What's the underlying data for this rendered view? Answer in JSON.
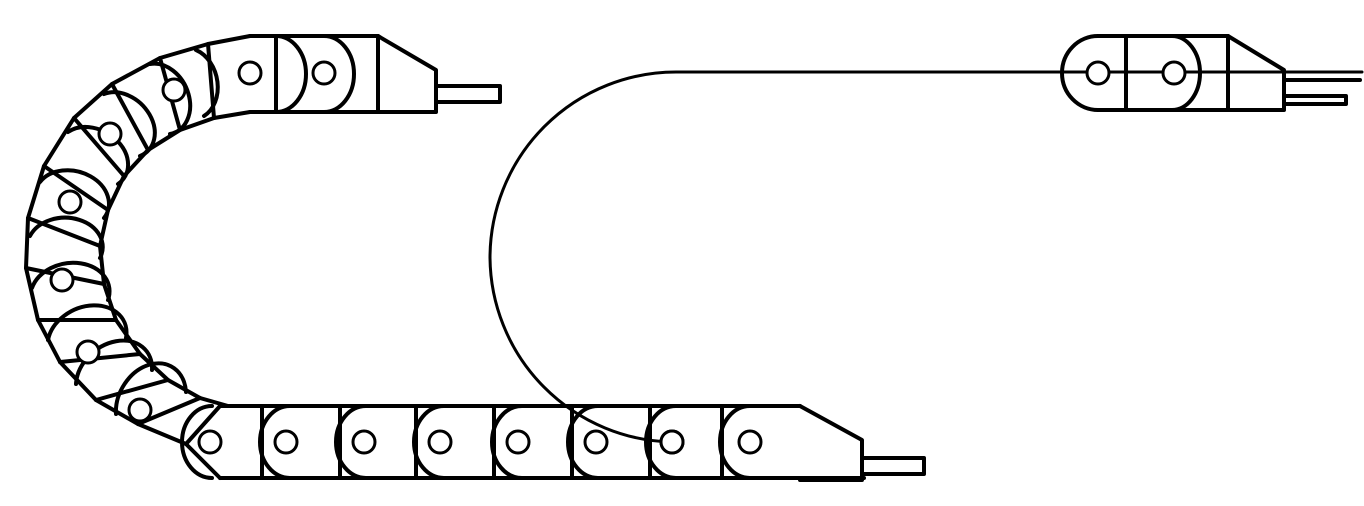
{
  "diagram": {
    "subject": "energy-chain-cable-carrier",
    "views": [
      "chain-assembly-bent",
      "chain-bend-path-schematic"
    ],
    "colors": {
      "line": "#000000",
      "background": "#ffffff"
    }
  }
}
